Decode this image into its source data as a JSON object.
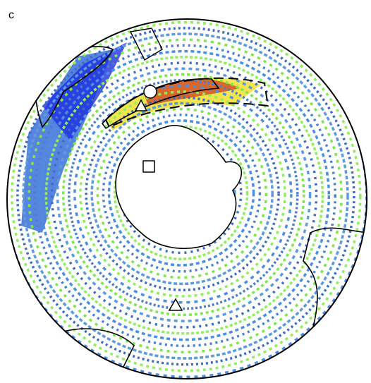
{
  "panel_label": "c"
}
